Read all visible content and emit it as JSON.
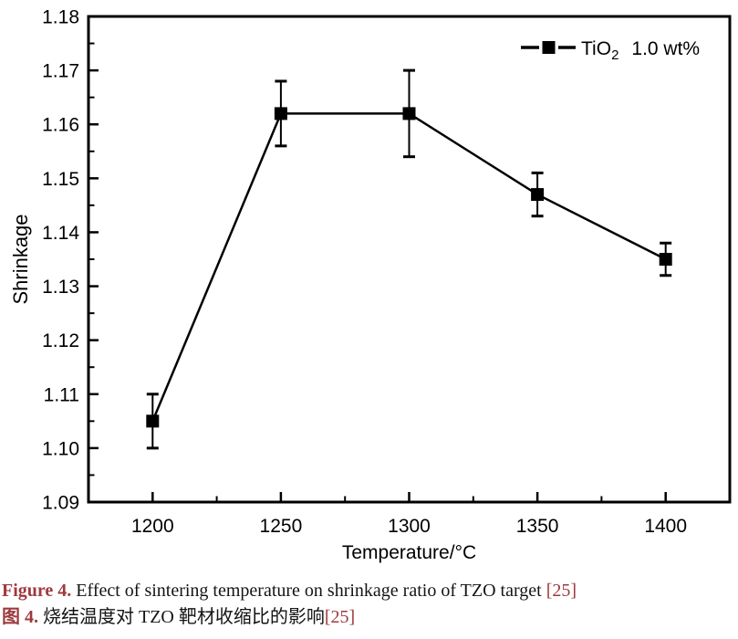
{
  "chart_data": {
    "type": "line",
    "title": "",
    "xlabel": "Temperature/°C",
    "ylabel": "Shrinkage",
    "x": [
      1200,
      1250,
      1300,
      1350,
      1400
    ],
    "series": [
      {
        "name": "TiO2 1.0 wt%",
        "values": [
          1.105,
          1.162,
          1.162,
          1.147,
          1.135
        ],
        "errors": [
          0.005,
          0.006,
          0.008,
          0.004,
          0.003
        ],
        "marker": "filled-square",
        "color": "#000000"
      }
    ],
    "xlim": [
      1175,
      1425
    ],
    "ylim": [
      1.09,
      1.18
    ],
    "x_major_ticks": [
      1200,
      1250,
      1300,
      1350,
      1400
    ],
    "x_minor_ticks": [
      1225,
      1275,
      1325,
      1375
    ],
    "y_major_ticks": [
      1.09,
      1.1,
      1.11,
      1.12,
      1.13,
      1.14,
      1.15,
      1.16,
      1.17,
      1.18
    ],
    "y_minor_ticks": [
      1.095,
      1.105,
      1.115,
      1.125,
      1.135,
      1.145,
      1.155,
      1.165,
      1.175
    ],
    "grid": false,
    "frame": true,
    "axis_color": "#000000",
    "legend": {
      "position": "top-right",
      "formula": "TiO",
      "subscript": "2",
      "concentration": "1.0 wt%"
    }
  },
  "caption": {
    "figure_label_en": "Figure 4.",
    "text_en": " Effect of sintering temperature on shrinkage ratio of TZO target ",
    "ref_en": "[25]",
    "figure_label_zh": "图 4.",
    "text_zh": " 烧结温度对 TZO 靶材收缩比的影响",
    "ref_zh": "[25]",
    "accent_color": "#9e3a3e"
  }
}
